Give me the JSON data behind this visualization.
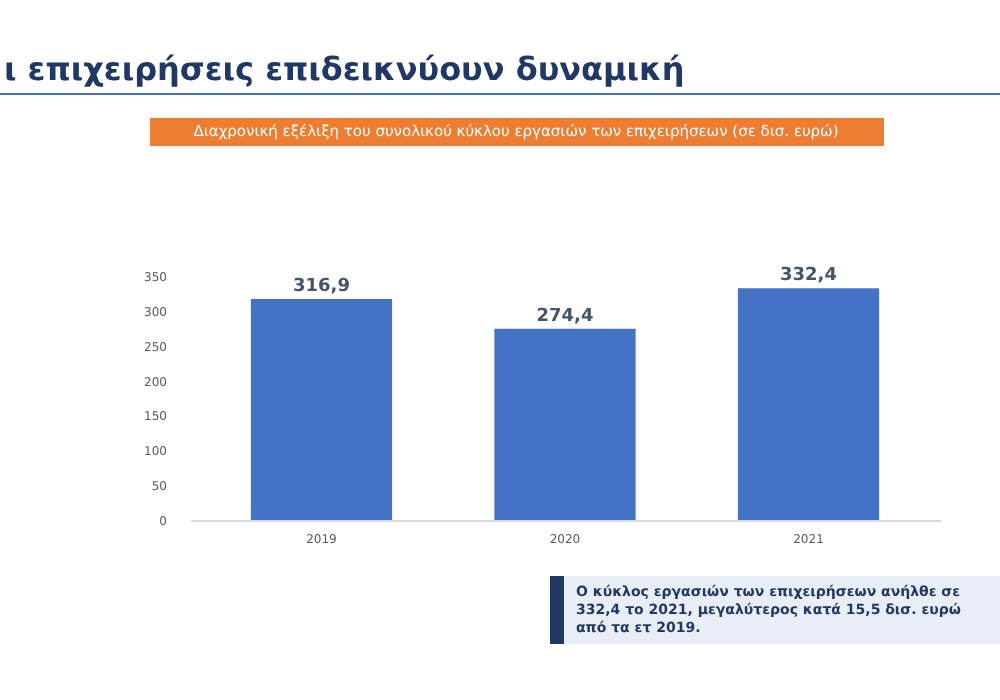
{
  "chart_data": {
    "type": "bar",
    "title": "ι επιχειρήσεις επιδεικνύουν δυναμική",
    "subtitle": "Διαχρονική εξέλιξη του συνολικού κύκλου εργασιών των επιχειρήσεων (σε δισ. ευρώ)",
    "categories": [
      "2019",
      "2020",
      "2021"
    ],
    "values": [
      316.9,
      274.4,
      332.4
    ],
    "color": "#4472c4",
    "ylim": [
      0,
      350
    ],
    "yticks": [
      0,
      50,
      100,
      150,
      200,
      250,
      300,
      350
    ],
    "grid": false,
    "value_labels": [
      "316,9",
      "274,4",
      "332,4"
    ],
    "annotations": [
      "Ο κύκλος εργασιών των επιχειρήσεων ανήλθε σε 332,4 το 2021, μεγαλύτερος κατά 15,5 δισ. ευρώ από τα ετ 2019."
    ]
  }
}
